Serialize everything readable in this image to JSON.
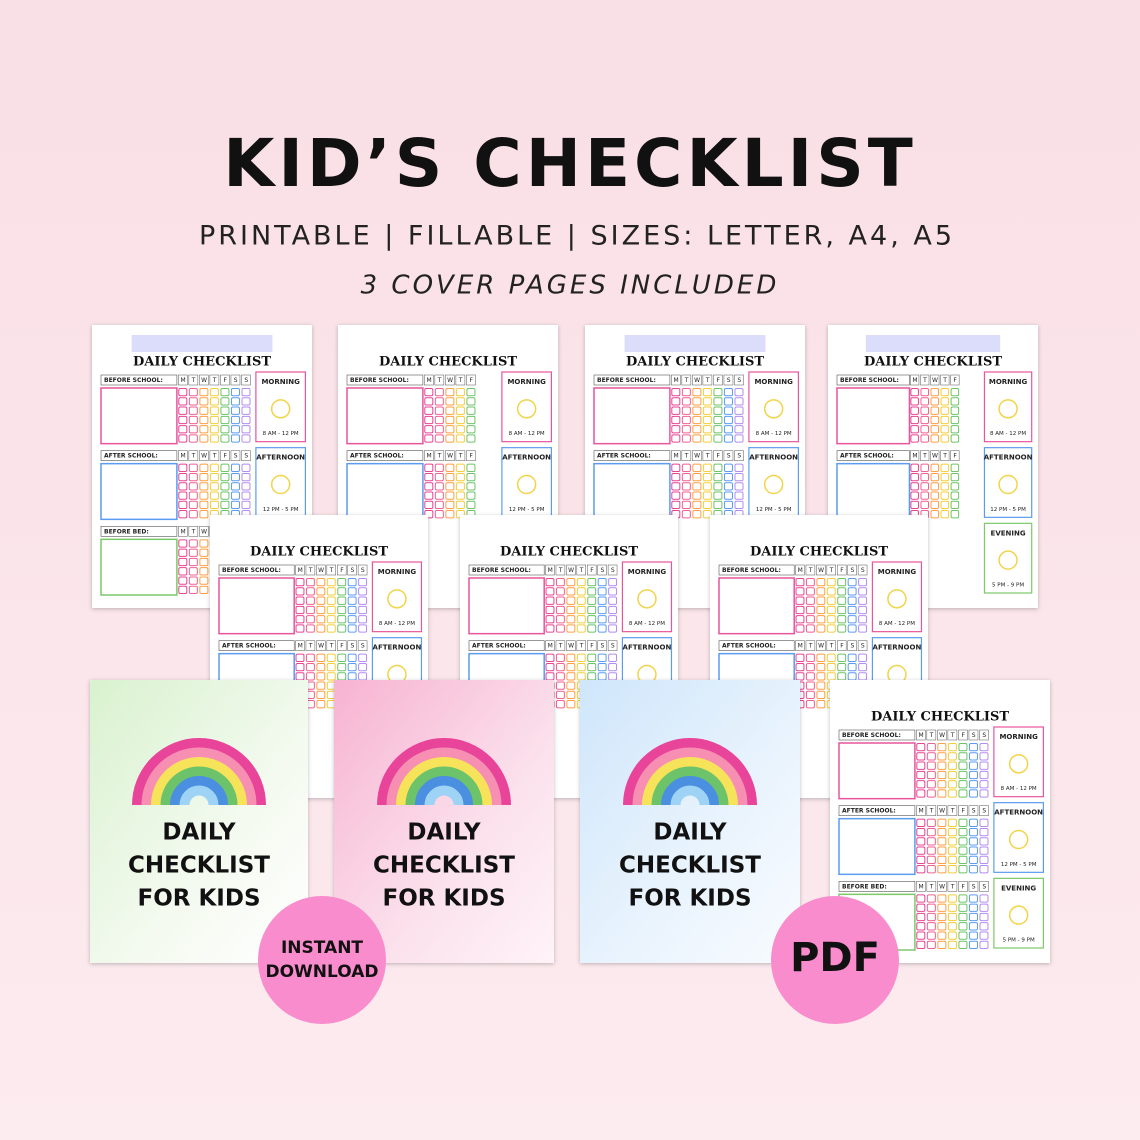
{
  "header": {
    "title": "KID’S CHECKLIST",
    "subtitle": "PRINTABLE | FILLABLE | SIZES: LETTER, A4, A5",
    "tagline": "3 COVER PAGES INCLUDED"
  },
  "checklist_pages": [
    {
      "title": "DAILY CHECKLIST",
      "days": [
        "M",
        "T",
        "W",
        "T",
        "F",
        "S",
        "S"
      ],
      "sections": [
        "BEFORE SCHOOL:",
        "AFTER SCHOOL:",
        "BEFORE BED:"
      ],
      "times": [
        {
          "label": "MORNING",
          "hours": "8 AM - 12 PM"
        },
        {
          "label": "AFTERNOON",
          "hours": "12 PM - 5 PM"
        }
      ]
    },
    {
      "title": "DAILY CHECKLIST",
      "days": [
        "M",
        "T",
        "W",
        "T",
        "F"
      ],
      "sections": [
        "BEFORE SCHOOL:",
        "AFTER SCHOOL:"
      ],
      "times": [
        {
          "label": "MORNING",
          "hours": "8 AM - 12 PM"
        },
        {
          "label": "AFTERNOON",
          "hours": "12 PM - 5 PM"
        }
      ]
    },
    {
      "title": "DAILY CHECKLIST",
      "days": [
        "M",
        "T",
        "W",
        "T",
        "F",
        "S",
        "S"
      ],
      "sections": [
        "BEFORE SCHOOL:",
        "AFTER SCHOOL:"
      ],
      "times": [
        {
          "label": "MORNING",
          "hours": "8 AM - 12 PM"
        },
        {
          "label": "AFTERNOON",
          "hours": "12 PM - 5 PM"
        }
      ]
    },
    {
      "title": "DAILY CHECKLIST",
      "days": [
        "M",
        "T",
        "W",
        "T",
        "F"
      ],
      "sections": [
        "BEFORE SCHOOL:",
        "AFTER SCHOOL:"
      ],
      "times": [
        {
          "label": "MORNING",
          "hours": "8 AM - 12 PM"
        },
        {
          "label": "AFTERNOON",
          "hours": "12 PM - 5 PM"
        },
        {
          "label": "EVENING",
          "hours": "5 PM - 9 PM"
        }
      ]
    },
    {
      "title": "DAILY CHECKLIST",
      "days": [
        "M",
        "T",
        "W",
        "T",
        "F",
        "S",
        "S"
      ],
      "sections": [
        "BEFORE SCHOOL:",
        "AFTER SCHOOL:"
      ],
      "times": [
        {
          "label": "MORNING",
          "hours": "8 AM - 12 PM"
        },
        {
          "label": "AFTERNOON"
        }
      ]
    },
    {
      "title": "DAILY CHECKLIST",
      "days": [
        "M",
        "T",
        "W",
        "T",
        "F",
        "S",
        "S"
      ],
      "sections": [
        "BEFORE SCHOOL:",
        "AFTER SCHOOL:"
      ],
      "times": [
        {
          "label": "MORNING",
          "hours": "8 AM - 12 PM"
        },
        {
          "label": "AFTERNOON"
        }
      ]
    },
    {
      "title": "DAILY CHECKLIST",
      "days": [
        "M",
        "T",
        "W",
        "T",
        "F",
        "S",
        "S"
      ],
      "sections": [
        "BEFORE SCHOOL:",
        "AFTER SCHOOL:"
      ],
      "times": [
        {
          "label": "MORNING",
          "hours": "8 AM - 12 PM"
        },
        {
          "label": "AFTERNOON"
        }
      ]
    },
    {
      "title": "DAILY CHECKLIST",
      "days": [
        "M",
        "T",
        "W",
        "T",
        "F",
        "S",
        "S"
      ],
      "sections": [
        "BEFORE SCHOOL:",
        "AFTER SCHOOL:",
        "BEFORE BED:"
      ],
      "times": [
        {
          "label": "MORNING",
          "hours": "8 AM - 12 PM"
        },
        {
          "label": "AFTERNOON",
          "hours": "12 PM - 5 PM"
        },
        {
          "label": "EVENING",
          "hours": "5 PM - 9 PM"
        }
      ]
    }
  ],
  "covers": [
    {
      "lines": [
        "DAILY",
        "CHECKLIST",
        "FOR KIDS"
      ]
    },
    {
      "lines": [
        "DAILY",
        "CHECKLIST",
        "FOR KIDS"
      ]
    },
    {
      "lines": [
        "DAILY",
        "CHECKLIST",
        "FOR KIDS"
      ]
    }
  ],
  "badges": [
    {
      "lines": [
        "INSTANT",
        "DOWNLOAD"
      ]
    },
    {
      "lines": [
        "PDF"
      ]
    }
  ]
}
